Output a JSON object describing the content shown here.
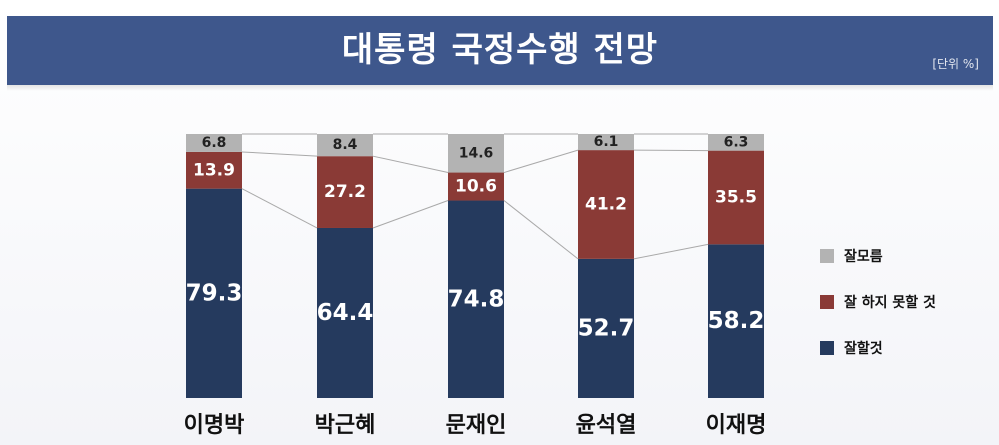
{
  "header": {
    "title": "대통령 국정수행 전망",
    "unit": "[단위 %]"
  },
  "colors": {
    "good": "#253a5e",
    "bad": "#8a3a36",
    "unknown": "#b3b3b3"
  },
  "chart_data": {
    "type": "bar",
    "stacked": true,
    "categories": [
      "이명박",
      "박근혜",
      "문재인",
      "윤석열",
      "이재명"
    ],
    "series": [
      {
        "name": "잘할것",
        "color": "#253a5e",
        "values": [
          79.3,
          64.4,
          74.8,
          52.7,
          58.2
        ]
      },
      {
        "name": "잘 하지 못할 것",
        "color": "#8a3a36",
        "values": [
          13.9,
          27.2,
          10.6,
          41.2,
          35.5
        ]
      },
      {
        "name": "잘모름",
        "color": "#b3b3b3",
        "values": [
          6.8,
          8.4,
          14.6,
          6.1,
          6.3
        ]
      }
    ],
    "ylim": [
      0,
      100
    ],
    "grid": false,
    "legend_position": "right",
    "connector_lines": true
  },
  "legend": [
    {
      "label": "잘모름",
      "color": "#b3b3b3"
    },
    {
      "label": "잘 하지 못할 것",
      "color": "#8a3a36"
    },
    {
      "label": "잘할것",
      "color": "#253a5e"
    }
  ]
}
